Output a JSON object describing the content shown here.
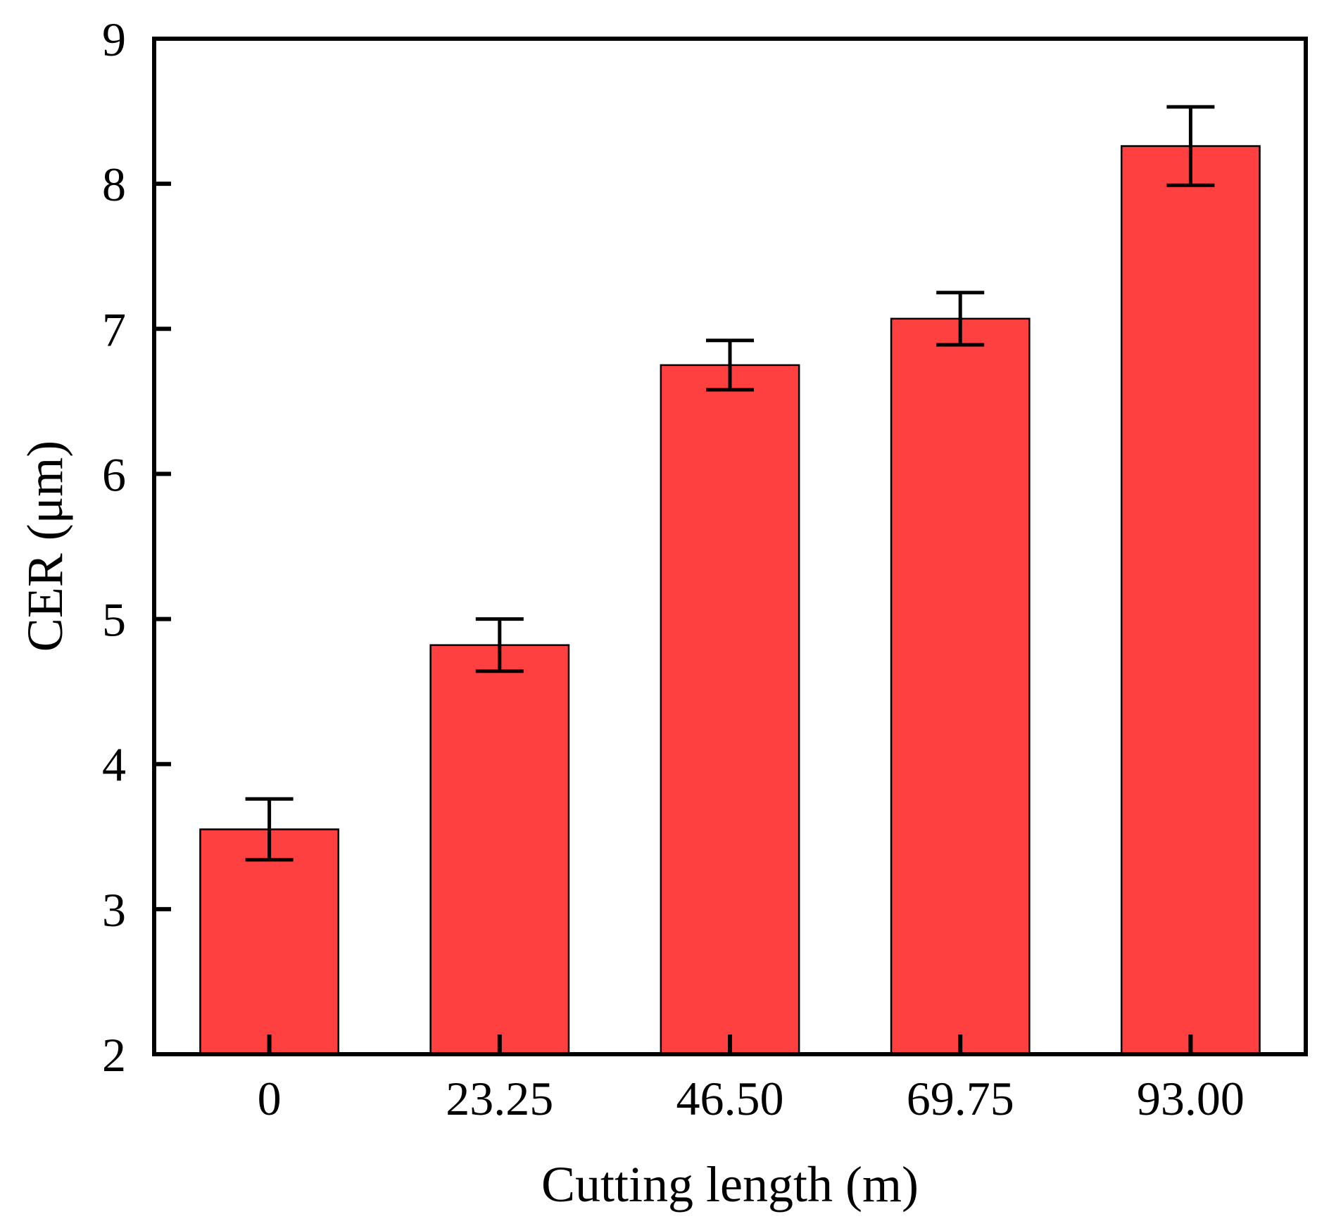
{
  "chart_data": {
    "type": "bar",
    "title": "",
    "xlabel": "Cutting length (m)",
    "ylabel": "CER (μm)",
    "categories": [
      "0",
      "23.25",
      "46.50",
      "69.75",
      "93.00"
    ],
    "values": [
      3.55,
      4.82,
      6.75,
      7.07,
      8.26
    ],
    "errors": [
      0.21,
      0.18,
      0.17,
      0.18,
      0.27
    ],
    "ylim": [
      2,
      9
    ],
    "yticks": [
      "2",
      "3",
      "4",
      "5",
      "6",
      "7",
      "8",
      "9"
    ],
    "legend": "none",
    "grid": false
  },
  "colors": {
    "bar_fill": "#ff4040",
    "bar_stroke": "#000000",
    "axis": "#000000"
  }
}
